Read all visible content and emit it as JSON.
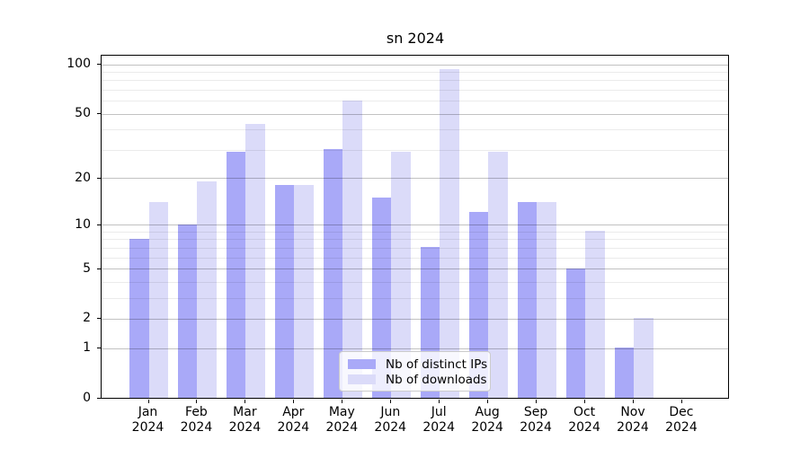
{
  "title": "sn 2024",
  "chart_data": {
    "type": "bar",
    "title": "sn 2024",
    "categories": [
      "Jan",
      "Feb",
      "Mar",
      "Apr",
      "May",
      "Jun",
      "Jul",
      "Aug",
      "Sep",
      "Oct",
      "Nov",
      "Dec"
    ],
    "category_year": "2024",
    "series": [
      {
        "name": "Nb of distinct IPs",
        "color": "#a9a9f8",
        "values": [
          8,
          10,
          29,
          18,
          30,
          15,
          7,
          12,
          14,
          5,
          1,
          0
        ]
      },
      {
        "name": "Nb of downloads",
        "color": "#dbdbf9",
        "values": [
          14,
          19,
          43,
          18,
          60,
          29,
          93,
          29,
          14,
          9,
          2,
          0
        ]
      }
    ],
    "yscale": "log1p",
    "ylim": [
      0,
      113
    ],
    "y_major_ticks": [
      0,
      1,
      2,
      5,
      10,
      20,
      50,
      100
    ],
    "y_minor_ticks": [
      3,
      4,
      6,
      7,
      8,
      9,
      30,
      40,
      60,
      70,
      80,
      90
    ],
    "grid": true,
    "grid_above_bars": true,
    "legend_position": "lower center",
    "colors": {
      "spine": "#000000",
      "major_grid": "#c2c2c2",
      "minor_grid": "#ebebeb",
      "legend_border": "#cccccc",
      "background": "#ffffff"
    }
  }
}
